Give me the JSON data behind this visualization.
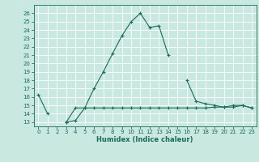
{
  "xlabel": "Humidex (Indice chaleur)",
  "x": [
    0,
    1,
    2,
    3,
    4,
    5,
    6,
    7,
    8,
    9,
    10,
    11,
    12,
    13,
    14,
    15,
    16,
    17,
    18,
    19,
    20,
    21,
    22,
    23
  ],
  "line1_y": [
    16.3,
    14.0,
    null,
    13.0,
    14.7,
    14.7,
    17.0,
    19.0,
    21.2,
    23.3,
    25.0,
    26.0,
    24.3,
    24.5,
    21.0,
    null,
    18.0,
    15.5,
    15.2,
    15.0,
    14.8,
    15.0,
    15.0,
    14.7
  ],
  "line2_y": [
    null,
    null,
    null,
    13.0,
    13.2,
    14.7,
    14.7,
    14.7,
    14.7,
    14.7,
    14.7,
    14.7,
    14.7,
    14.7,
    14.7,
    14.7,
    14.7,
    14.7,
    14.7,
    14.8,
    14.8,
    14.8,
    15.0,
    14.7
  ],
  "line_color": "#1a6b5a",
  "bg_color": "#c8e8e0",
  "grid_color": "#ffffff",
  "xlim": [
    -0.5,
    23.5
  ],
  "ylim": [
    12.5,
    27
  ],
  "yticks": [
    13,
    14,
    15,
    16,
    17,
    18,
    19,
    20,
    21,
    22,
    23,
    24,
    25,
    26
  ],
  "xticks": [
    0,
    1,
    2,
    3,
    4,
    5,
    6,
    7,
    8,
    9,
    10,
    11,
    12,
    13,
    14,
    15,
    16,
    17,
    18,
    19,
    20,
    21,
    22,
    23
  ],
  "marker": "+",
  "markersize": 3,
  "linewidth": 0.8,
  "tick_fontsize": 5.0,
  "xlabel_fontsize": 6.0
}
